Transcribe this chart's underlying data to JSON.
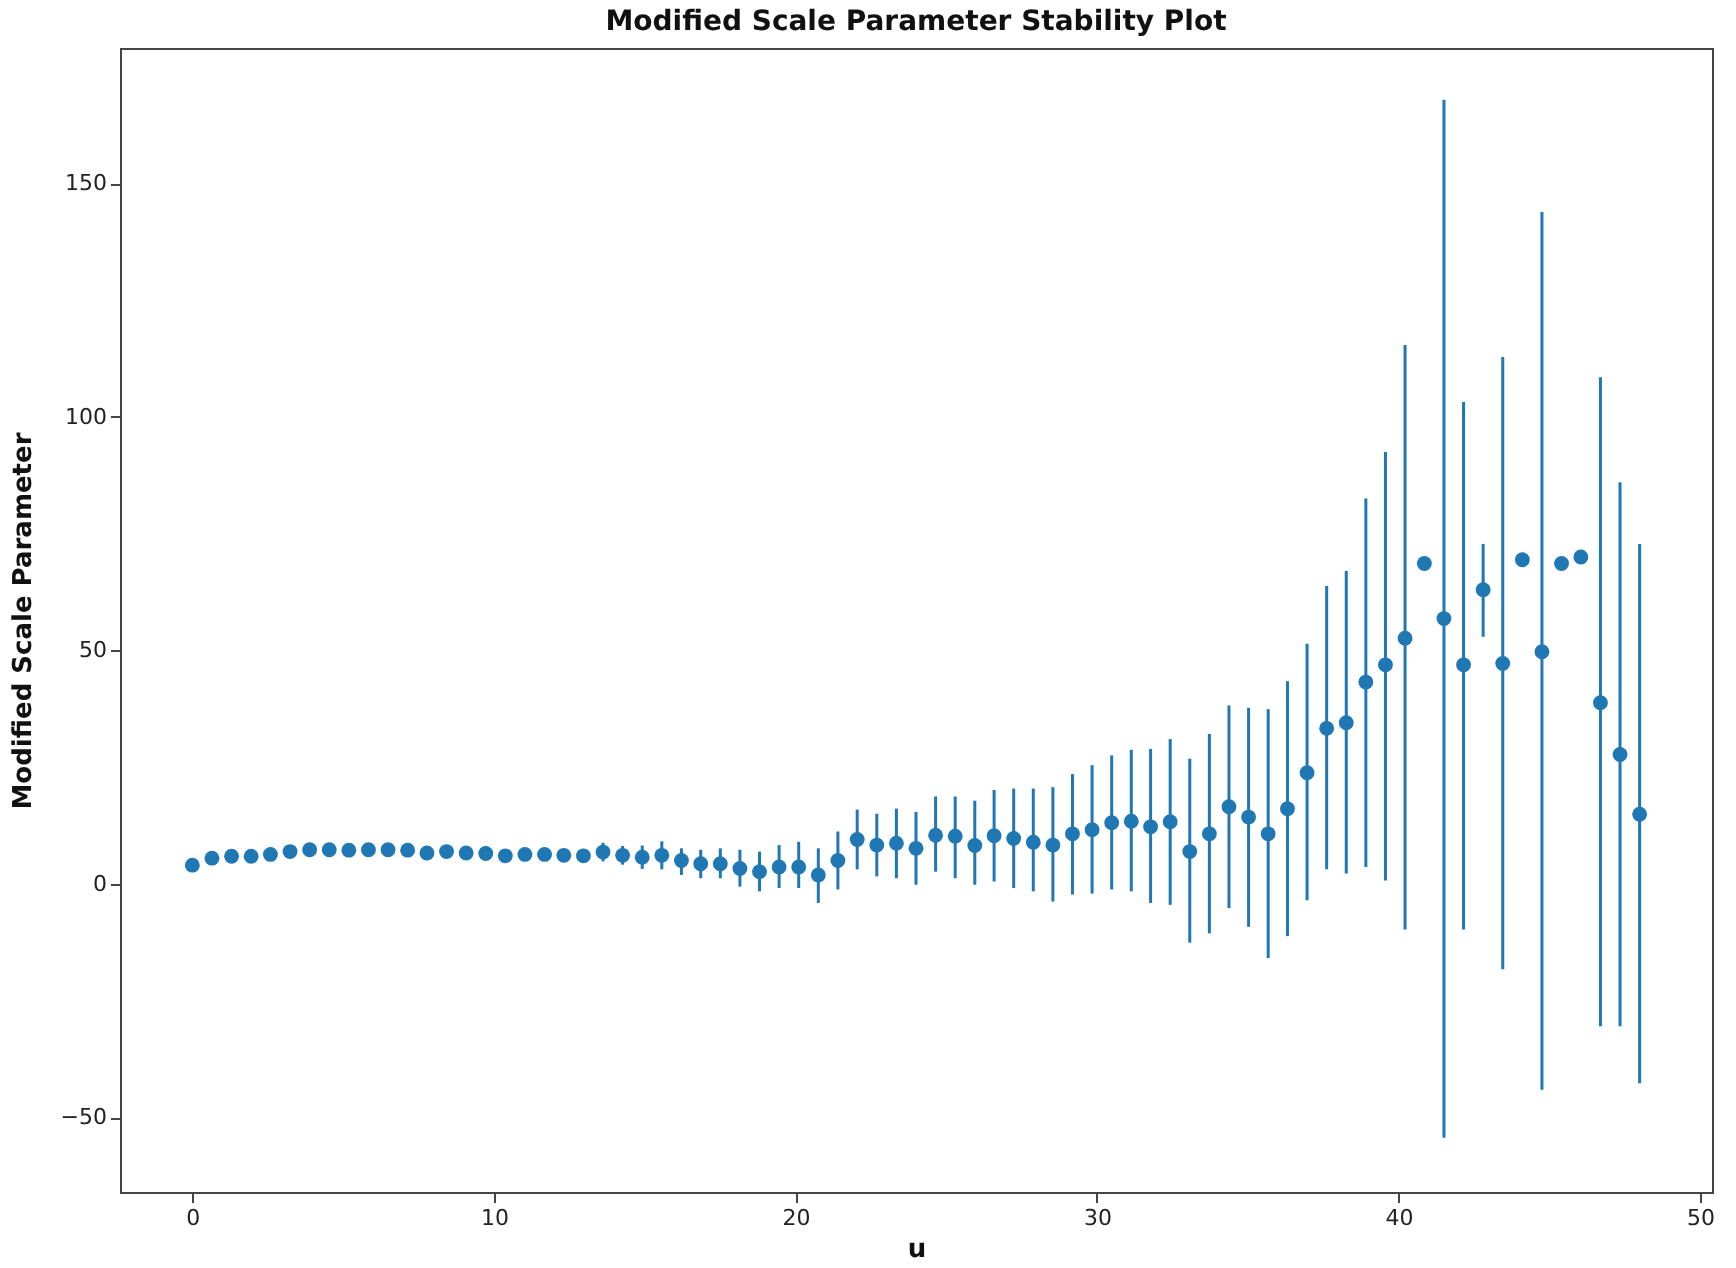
{
  "chart_data": {
    "type": "scatter",
    "title": "Modified Scale Parameter Stability Plot",
    "xlabel": "u",
    "ylabel": "Modified Scale Parameter",
    "x": [
      0,
      0.65,
      1.3,
      1.95,
      2.59,
      3.24,
      3.89,
      4.54,
      5.19,
      5.84,
      6.49,
      7.14,
      7.78,
      8.43,
      9.08,
      9.73,
      10.38,
      11.03,
      11.68,
      12.32,
      12.97,
      13.62,
      14.27,
      14.92,
      15.57,
      16.22,
      16.86,
      17.51,
      18.16,
      18.81,
      19.46,
      20.11,
      20.76,
      21.41,
      22.05,
      22.7,
      23.35,
      24,
      24.65,
      25.3,
      25.95,
      26.59,
      27.24,
      27.89,
      28.54,
      29.19,
      29.84,
      30.49,
      31.14,
      31.78,
      32.43,
      33.08,
      33.73,
      34.38,
      35.03,
      35.68,
      36.32,
      36.97,
      37.62,
      38.27,
      38.92,
      39.57,
      40.22,
      40.86,
      41.51,
      42.16,
      42.81,
      43.46,
      44.11,
      44.76,
      45.41,
      46.05,
      46.7,
      47.35,
      48
    ],
    "series": [
      {
        "color": "#1f77b4",
        "values": [
          4.0,
          5.5,
          5.9,
          5.9,
          6.3,
          6.9,
          7.3,
          7.3,
          7.2,
          7.3,
          7.3,
          7.2,
          6.6,
          6.9,
          6.6,
          6.5,
          6.0,
          6.3,
          6.3,
          6.1,
          6.0,
          6.8,
          6.1,
          5.7,
          6.1,
          5.0,
          4.3,
          4.3,
          3.3,
          2.6,
          3.6,
          3.6,
          1.9,
          5.0,
          9.5,
          8.3,
          8.7,
          7.6,
          10.4,
          10.2,
          8.2,
          10.3,
          9.7,
          8.9,
          8.3,
          10.7,
          11.6,
          13.1,
          13.4,
          12.2,
          13.3,
          6.9,
          10.7,
          16.5,
          14.3,
          10.7,
          16.1,
          23.8,
          33.3,
          34.5,
          43.2,
          46.9,
          52.6,
          68.6,
          56.8,
          46.9,
          63.0,
          47.2,
          69.4,
          49.7,
          68.6,
          70.0,
          38.8,
          27.7,
          14.9
        ],
        "errors": [
          null,
          null,
          null,
          null,
          null,
          null,
          null,
          null,
          null,
          null,
          null,
          null,
          null,
          null,
          null,
          null,
          null,
          null,
          1,
          1,
          1,
          2,
          2,
          2.5,
          3,
          [
            1.9,
            7.6
          ],
          [
            1.2,
            7.3
          ],
          [
            1.2,
            7.6
          ],
          [
            -0.6,
            7.3
          ],
          [
            -1.6,
            6.9
          ],
          [
            -0.9,
            8.3
          ],
          [
            -0.9,
            9.0
          ],
          [
            -4.1,
            7.6
          ],
          [
            -1.2,
            11.2
          ],
          [
            3.1,
            15.9
          ],
          [
            1.6,
            15.0
          ],
          [
            1.2,
            16.1
          ],
          [
            -0.2,
            15.4
          ],
          [
            2.6,
            18.7
          ],
          [
            1.2,
            18.7
          ],
          [
            -0.2,
            17.8
          ],
          [
            0.5,
            20.1
          ],
          [
            -0.9,
            20.4
          ],
          [
            -1.6,
            20.4
          ],
          [
            -3.8,
            20.7
          ],
          [
            -2.3,
            23.5
          ],
          [
            -2.1,
            25.4
          ],
          [
            -1.2,
            27.5
          ],
          [
            -1.6,
            28.7
          ],
          [
            -4.1,
            28.9
          ],
          [
            -4.5,
            31.0
          ],
          [
            -12.6,
            26.8
          ],
          [
            -10.6,
            32.1
          ],
          [
            -5.2,
            38.2
          ],
          [
            -9.2,
            37.7
          ],
          [
            -15.9,
            37.4
          ],
          [
            -11.2,
            43.4
          ],
          [
            -3.5,
            51.4
          ],
          [
            3.1,
            63.8
          ],
          [
            2.2,
            67.0
          ],
          [
            3.6,
            82.5
          ],
          [
            0.7,
            92.5
          ],
          [
            -9.8,
            115.4
          ],
          null,
          [
            -54.4,
            167.9
          ],
          [
            -9.8,
            103.2
          ],
          [
            52.9,
            72.8
          ],
          [
            -18.3,
            112.8
          ],
          null,
          [
            -44.1,
            143.9
          ],
          null,
          null,
          [
            -30.5,
            108.5
          ],
          [
            -30.5,
            86.0
          ],
          [
            -42.7,
            72.8
          ]
        ]
      }
    ],
    "xlim": [
      -2.4,
      50.4
    ],
    "xticks": [
      0,
      10,
      20,
      30,
      40,
      50
    ],
    "ylim": [
      -66,
      179
    ],
    "yticks": [
      -50,
      0,
      50,
      100,
      150
    ],
    "grid": false,
    "marker": "circle"
  }
}
